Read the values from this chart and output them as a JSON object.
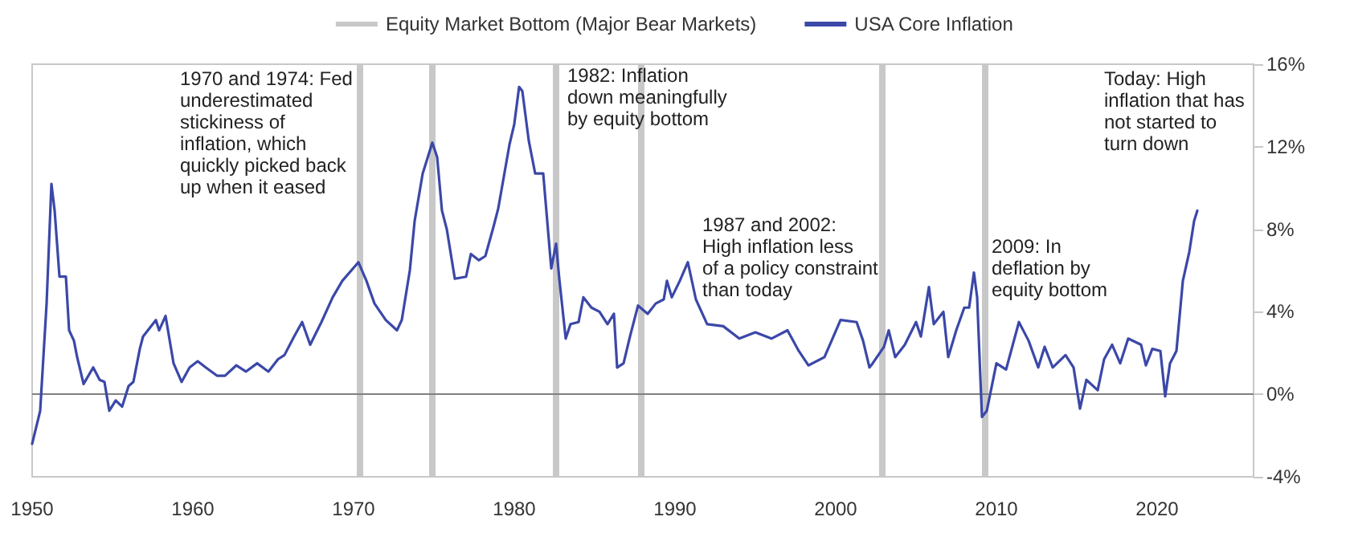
{
  "chart_data": {
    "type": "line",
    "xlim": [
      1950,
      2026
    ],
    "xticks": [
      1950,
      1960,
      1970,
      1980,
      1990,
      2000,
      2010,
      2020
    ],
    "ylim": [
      -4,
      16
    ],
    "yticks": [
      {
        "value": -4,
        "label": "-4%"
      },
      {
        "value": 0,
        "label": "0%"
      },
      {
        "value": 4,
        "label": "4%"
      },
      {
        "value": 8,
        "label": "8%"
      },
      {
        "value": 12,
        "label": "12%"
      },
      {
        "value": 16,
        "label": "16%"
      }
    ],
    "legend": "top",
    "grid": false,
    "marker": "none",
    "line_style": "solid",
    "series": [
      {
        "name": "Equity Market Bottom (Major Bear Markets)",
        "color": "#c8c8c8"
      },
      {
        "name": "USA Core Inflation",
        "color": "#3b48a8",
        "x": [
          1950.0,
          1950.5,
          1950.9,
          1951.2,
          1951.4,
          1951.7,
          1952.1,
          1952.3,
          1952.6,
          1952.8,
          1953.2,
          1953.8,
          1954.2,
          1954.5,
          1954.8,
          1955.2,
          1955.6,
          1956.0,
          1956.3,
          1956.7,
          1956.9,
          1957.7,
          1957.9,
          1958.3,
          1958.8,
          1959.3,
          1959.8,
          1960.3,
          1960.8,
          1961.5,
          1962.0,
          1962.7,
          1963.3,
          1964.0,
          1964.7,
          1965.3,
          1965.7,
          1966.3,
          1966.8,
          1967.3,
          1968.0,
          1968.7,
          1969.3,
          1970.3,
          1970.8,
          1971.3,
          1972.0,
          1972.7,
          1973.0,
          1973.5,
          1973.8,
          1974.3,
          1974.9,
          1975.2,
          1975.5,
          1975.8,
          1976.3,
          1977.0,
          1977.3,
          1977.8,
          1978.2,
          1978.7,
          1979.0,
          1979.7,
          1980.0,
          1980.3,
          1980.5,
          1980.9,
          1981.3,
          1981.8,
          1982.3,
          1982.6,
          1982.8,
          1983.2,
          1983.5,
          1984.0,
          1984.3,
          1984.8,
          1985.3,
          1985.8,
          1986.2,
          1986.4,
          1986.8,
          1987.2,
          1987.7,
          1988.3,
          1988.8,
          1989.3,
          1989.5,
          1989.8,
          1990.3,
          1990.8,
          1991.3,
          1992.0,
          1993.0,
          1994.0,
          1995.0,
          1996.0,
          1997.0,
          1997.7,
          1998.3,
          1999.3,
          1999.8,
          2000.3,
          2001.3,
          2001.7,
          2002.1,
          2002.3,
          2003.0,
          2003.3,
          2003.7,
          2004.3,
          2005.0,
          2005.3,
          2005.8,
          2006.1,
          2006.7,
          2007.0,
          2007.5,
          2008.0,
          2008.3,
          2008.6,
          2008.8,
          2009.1,
          2009.4,
          2010.0,
          2010.6,
          2011.4,
          2012.0,
          2012.6,
          2013.0,
          2013.5,
          2014.3,
          2014.8,
          2015.2,
          2015.6,
          2016.3,
          2016.7,
          2017.2,
          2017.7,
          2018.2,
          2019.0,
          2019.3,
          2019.7,
          2020.2,
          2020.5,
          2020.8,
          2021.2,
          2021.6,
          2022.0,
          2022.3,
          2022.5
        ],
        "values": [
          -2.4,
          -0.8,
          4.4,
          10.2,
          8.9,
          5.7,
          5.7,
          3.1,
          2.6,
          1.8,
          0.5,
          1.3,
          0.7,
          0.6,
          -0.8,
          -0.3,
          -0.6,
          0.4,
          0.6,
          2.2,
          2.8,
          3.6,
          3.1,
          3.8,
          1.5,
          0.6,
          1.3,
          1.6,
          1.3,
          0.9,
          0.9,
          1.4,
          1.1,
          1.5,
          1.1,
          1.7,
          1.9,
          2.8,
          3.5,
          2.4,
          3.5,
          4.7,
          5.5,
          6.4,
          5.5,
          4.4,
          3.6,
          3.1,
          3.6,
          6.0,
          8.4,
          10.7,
          12.2,
          11.5,
          8.9,
          8.0,
          5.6,
          5.7,
          6.8,
          6.5,
          6.7,
          8.1,
          9.0,
          12.1,
          13.1,
          14.9,
          14.7,
          12.3,
          10.7,
          10.7,
          6.1,
          7.3,
          5.6,
          2.7,
          3.4,
          3.5,
          4.7,
          4.2,
          4.0,
          3.4,
          3.9,
          1.3,
          1.5,
          2.8,
          4.3,
          3.9,
          4.4,
          4.6,
          5.5,
          4.7,
          5.5,
          6.4,
          4.6,
          3.4,
          3.3,
          2.7,
          3.0,
          2.7,
          3.1,
          2.1,
          1.4,
          1.8,
          2.7,
          3.6,
          3.5,
          2.6,
          1.3,
          1.5,
          2.3,
          3.1,
          1.8,
          2.4,
          3.5,
          2.8,
          5.2,
          3.4,
          4.0,
          1.8,
          3.1,
          4.2,
          4.2,
          5.9,
          4.7,
          -1.1,
          -0.8,
          1.5,
          1.2,
          3.5,
          2.6,
          1.3,
          2.3,
          1.3,
          1.9,
          1.3,
          -0.7,
          0.7,
          0.2,
          1.7,
          2.4,
          1.5,
          2.7,
          2.4,
          1.4,
          2.2,
          2.1,
          -0.1,
          1.5,
          2.1,
          5.5,
          6.9,
          8.4,
          8.9
        ]
      }
    ],
    "ref_lines": [
      {
        "axis": "x",
        "value": 1970.4,
        "color": "#c8c8c8"
      },
      {
        "axis": "x",
        "value": 1974.9,
        "color": "#c8c8c8"
      },
      {
        "axis": "x",
        "value": 1982.6,
        "color": "#c8c8c8"
      },
      {
        "axis": "x",
        "value": 1987.9,
        "color": "#c8c8c8"
      },
      {
        "axis": "x",
        "value": 2002.9,
        "color": "#c8c8c8"
      },
      {
        "axis": "x",
        "value": 2009.3,
        "color": "#c8c8c8"
      },
      {
        "axis": "y",
        "value": 0,
        "color": "#808080"
      }
    ],
    "annotations": [
      "1970 and 1974: Fed\nunderestimated\nstickiness of\ninflation, which\nquickly picked back\nup when it eased",
      {
        "text": "1982: Inflation\ndown meaningfully\nby equity bottom",
        "x": 1983.3,
        "y": 16
      },
      "1987 and 2002:\nHigh inflation less\nof a policy constraint\nthan today",
      {
        "text": "2009: In\ndeflation by\nequity bottom",
        "x": 2009.7,
        "y": 7.7
      },
      "Today: High\ninflation that has\nnot started to\nturn down"
    ]
  }
}
